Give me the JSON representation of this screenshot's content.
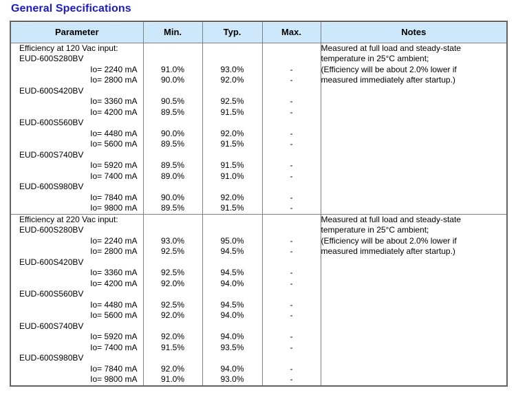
{
  "page_title": "General Specifications",
  "colors": {
    "title_blue": "#1b1bc8",
    "header_bg": "#cde8fa",
    "border_gray": "#7f7f7f",
    "outer_border": "#616161"
  },
  "table": {
    "headers": [
      "Parameter",
      "Min.",
      "Typ.",
      "Max.",
      "Notes"
    ],
    "sections": [
      {
        "note": "Measured at full load and steady-state\ntemperature in 25°C ambient;\n(Efficiency will be about 2.0% lower if\nmeasured immediately after startup.)",
        "rows": [
          {
            "param": "Efficiency at 120 Vac input:"
          },
          {
            "param": "EUD-600S280BV"
          },
          {
            "param": "Io= 2240 mA",
            "min": "91.0%",
            "typ": "93.0%",
            "max": "-"
          },
          {
            "param": "Io= 2800 mA",
            "min": "90.0%",
            "typ": "92.0%",
            "max": "-"
          },
          {
            "param": "EUD-600S420BV"
          },
          {
            "param": "Io= 3360 mA",
            "min": "90.5%",
            "typ": "92.5%",
            "max": "-"
          },
          {
            "param": "Io= 4200 mA",
            "min": "89.5%",
            "typ": "91.5%",
            "max": "-"
          },
          {
            "param": "EUD-600S560BV"
          },
          {
            "param": "Io= 4480 mA",
            "min": "90.0%",
            "typ": "92.0%",
            "max": "-"
          },
          {
            "param": "Io= 5600 mA",
            "min": "89.5%",
            "typ": "91.5%",
            "max": "-"
          },
          {
            "param": "EUD-600S740BV"
          },
          {
            "param": "Io= 5920 mA",
            "min": "89.5%",
            "typ": "91.5%",
            "max": "-"
          },
          {
            "param": "Io= 7400 mA",
            "min": "89.0%",
            "typ": "91.0%",
            "max": "-"
          },
          {
            "param": "EUD-600S980BV"
          },
          {
            "param": "Io= 7840 mA",
            "min": "90.0%",
            "typ": "92.0%",
            "max": "-"
          },
          {
            "param": "Io= 9800 mA",
            "min": "89.5%",
            "typ": "91.5%",
            "max": "-"
          }
        ]
      },
      {
        "note": "Measured at full load and steady-state\ntemperature in 25°C ambient;\n(Efficiency will be about 2.0% lower if\nmeasured immediately after startup.)",
        "rows": [
          {
            "param": "Efficiency at 220 Vac input:"
          },
          {
            "param": "EUD-600S280BV"
          },
          {
            "param": "Io= 2240 mA",
            "min": "93.0%",
            "typ": "95.0%",
            "max": "-"
          },
          {
            "param": "Io= 2800 mA",
            "min": "92.5%",
            "typ": "94.5%",
            "max": "-"
          },
          {
            "param": "EUD-600S420BV"
          },
          {
            "param": "Io= 3360 mA",
            "min": "92.5%",
            "typ": "94.5%",
            "max": "-"
          },
          {
            "param": "Io= 4200 mA",
            "min": "92.0%",
            "typ": "94.0%",
            "max": "-"
          },
          {
            "param": "EUD-600S560BV"
          },
          {
            "param": "Io= 4480 mA",
            "min": "92.5%",
            "typ": "94.5%",
            "max": "-"
          },
          {
            "param": "Io= 5600 mA",
            "min": "92.0%",
            "typ": "94.0%",
            "max": "-"
          },
          {
            "param": "EUD-600S740BV"
          },
          {
            "param": "Io= 5920 mA",
            "min": "92.0%",
            "typ": "94.0%",
            "max": "-"
          },
          {
            "param": "Io= 7400 mA",
            "min": "91.5%",
            "typ": "93.5%",
            "max": "-"
          },
          {
            "param": "EUD-600S980BV"
          },
          {
            "param": "Io= 7840 mA",
            "min": "92.0%",
            "typ": "94.0%",
            "max": "-"
          },
          {
            "param": "Io= 9800 mA",
            "min": "91.0%",
            "typ": "93.0%",
            "max": "-"
          }
        ]
      }
    ]
  }
}
